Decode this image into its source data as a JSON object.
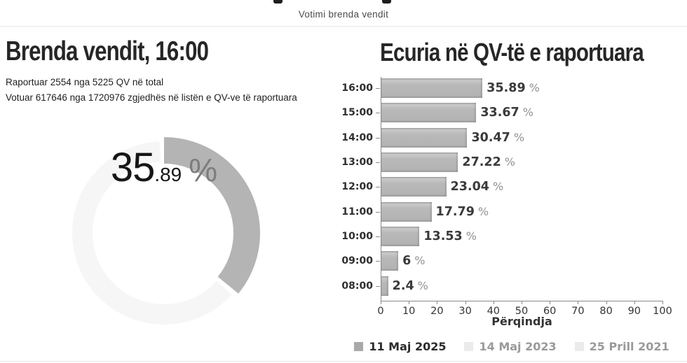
{
  "header": {
    "subtitle": "Votimi brenda vendit"
  },
  "summary": {
    "title": "Brenda vendit, 16:00",
    "line1": "Raportuar 2554 nga 5225 QV në total",
    "line2": "Votuar 617646 nga 1720976 zgjedhës në listën e QV-ve të raportuara",
    "donut": {
      "percent": 35.89,
      "value_int": "35",
      "value_dec": ".89",
      "percent_sign": "%",
      "fill_color": "#b4b4b4",
      "track_color": "#f6f6f6"
    }
  },
  "chart_data": {
    "type": "bar",
    "orientation": "horizontal",
    "title": "Ecuria në QV-të e raportuara",
    "categories": [
      "16:00",
      "15:00",
      "14:00",
      "13:00",
      "12:00",
      "11:00",
      "10:00",
      "09:00",
      "08:00"
    ],
    "values": [
      35.89,
      33.67,
      30.47,
      27.22,
      23.04,
      17.79,
      13.53,
      6,
      2.4
    ],
    "value_display": [
      "35.89",
      "33.67",
      "30.47",
      "27.22",
      "23.04",
      "17.79",
      "13.53",
      "6",
      "2.4"
    ],
    "value_suffix": "%",
    "xlabel": "Përqindja",
    "xlim": [
      0,
      100
    ],
    "xticks": [
      0,
      10,
      20,
      30,
      40,
      50,
      60,
      70,
      80,
      90,
      100
    ],
    "grid": false,
    "bar_color": "#b4b4b4",
    "legend_position": "bottom",
    "legend": [
      {
        "label": "11 Maj 2025",
        "active": true
      },
      {
        "label": "14 Maj 2023",
        "active": false
      },
      {
        "label": "25 Prill 2021",
        "active": false
      }
    ]
  }
}
